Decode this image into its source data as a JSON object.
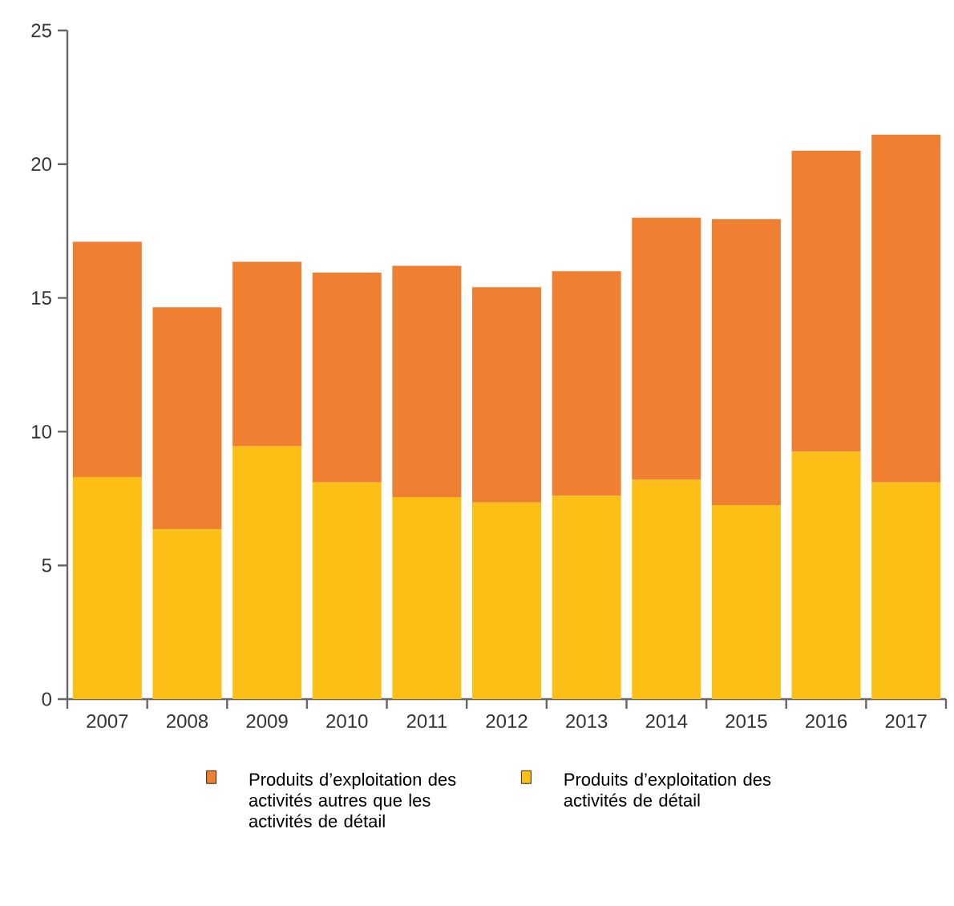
{
  "chart_data": {
    "type": "bar",
    "stacked": true,
    "categories": [
      "2007",
      "2008",
      "2009",
      "2010",
      "2011",
      "2012",
      "2013",
      "2014",
      "2015",
      "2016",
      "2017"
    ],
    "series": [
      {
        "name": "Produits d’exploitation des activités de détail",
        "color": "#fbbf16",
        "values": [
          8.3,
          6.35,
          9.45,
          8.1,
          7.55,
          7.35,
          7.6,
          8.2,
          7.25,
          9.25,
          8.1
        ]
      },
      {
        "name": "Produits d’exploitation des activités autres que les activités de détail",
        "color": "#ef7f31",
        "values": [
          8.8,
          8.3,
          6.9,
          7.85,
          8.65,
          8.05,
          8.4,
          9.8,
          10.7,
          11.25,
          13.0
        ]
      }
    ],
    "ylim": [
      0,
      25
    ],
    "yticks": [
      0,
      5,
      10,
      15,
      20,
      25
    ],
    "grid": false,
    "legend": "bottom"
  }
}
